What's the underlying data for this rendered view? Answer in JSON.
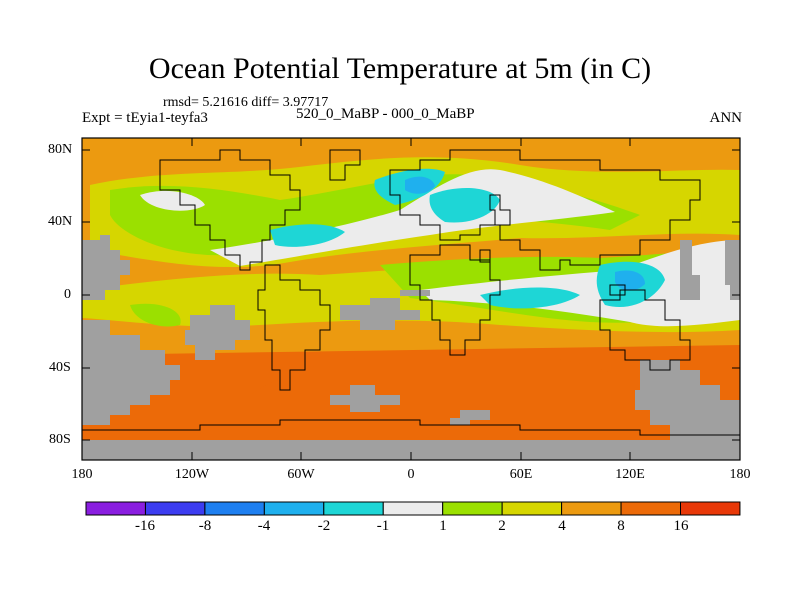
{
  "title": "Ocean Potential Temperature at 5m (in C)",
  "stats_line": "rmsd= 5.21616 diff= 3.97717",
  "experiment": "Expt = tEyia1-teyfa3",
  "subtitle": "520_0_MaBP - 000_0_MaBP",
  "season": "ANN",
  "lat_labels": [
    "80N",
    "40N",
    "0",
    "40S",
    "80S"
  ],
  "lon_labels": [
    "180",
    "120W",
    "60W",
    "0",
    "60E",
    "120E",
    "180"
  ],
  "colorbar": {
    "boundaries": [
      "-16",
      "-8",
      "-4",
      "-2",
      "-1",
      "1",
      "2",
      "4",
      "8",
      "16"
    ],
    "colors": [
      "#8a1ee0",
      "#3c3cf0",
      "#1e7ff0",
      "#1fb0ee",
      "#1ed6d6",
      "#ececec",
      "#9be000",
      "#d6d600",
      "#ec9a10",
      "#ec6a08",
      "#e83808"
    ]
  },
  "map_colors": {
    "land_mask": "#a0a0a0",
    "frame": "#000000",
    "coast": "#000000"
  }
}
